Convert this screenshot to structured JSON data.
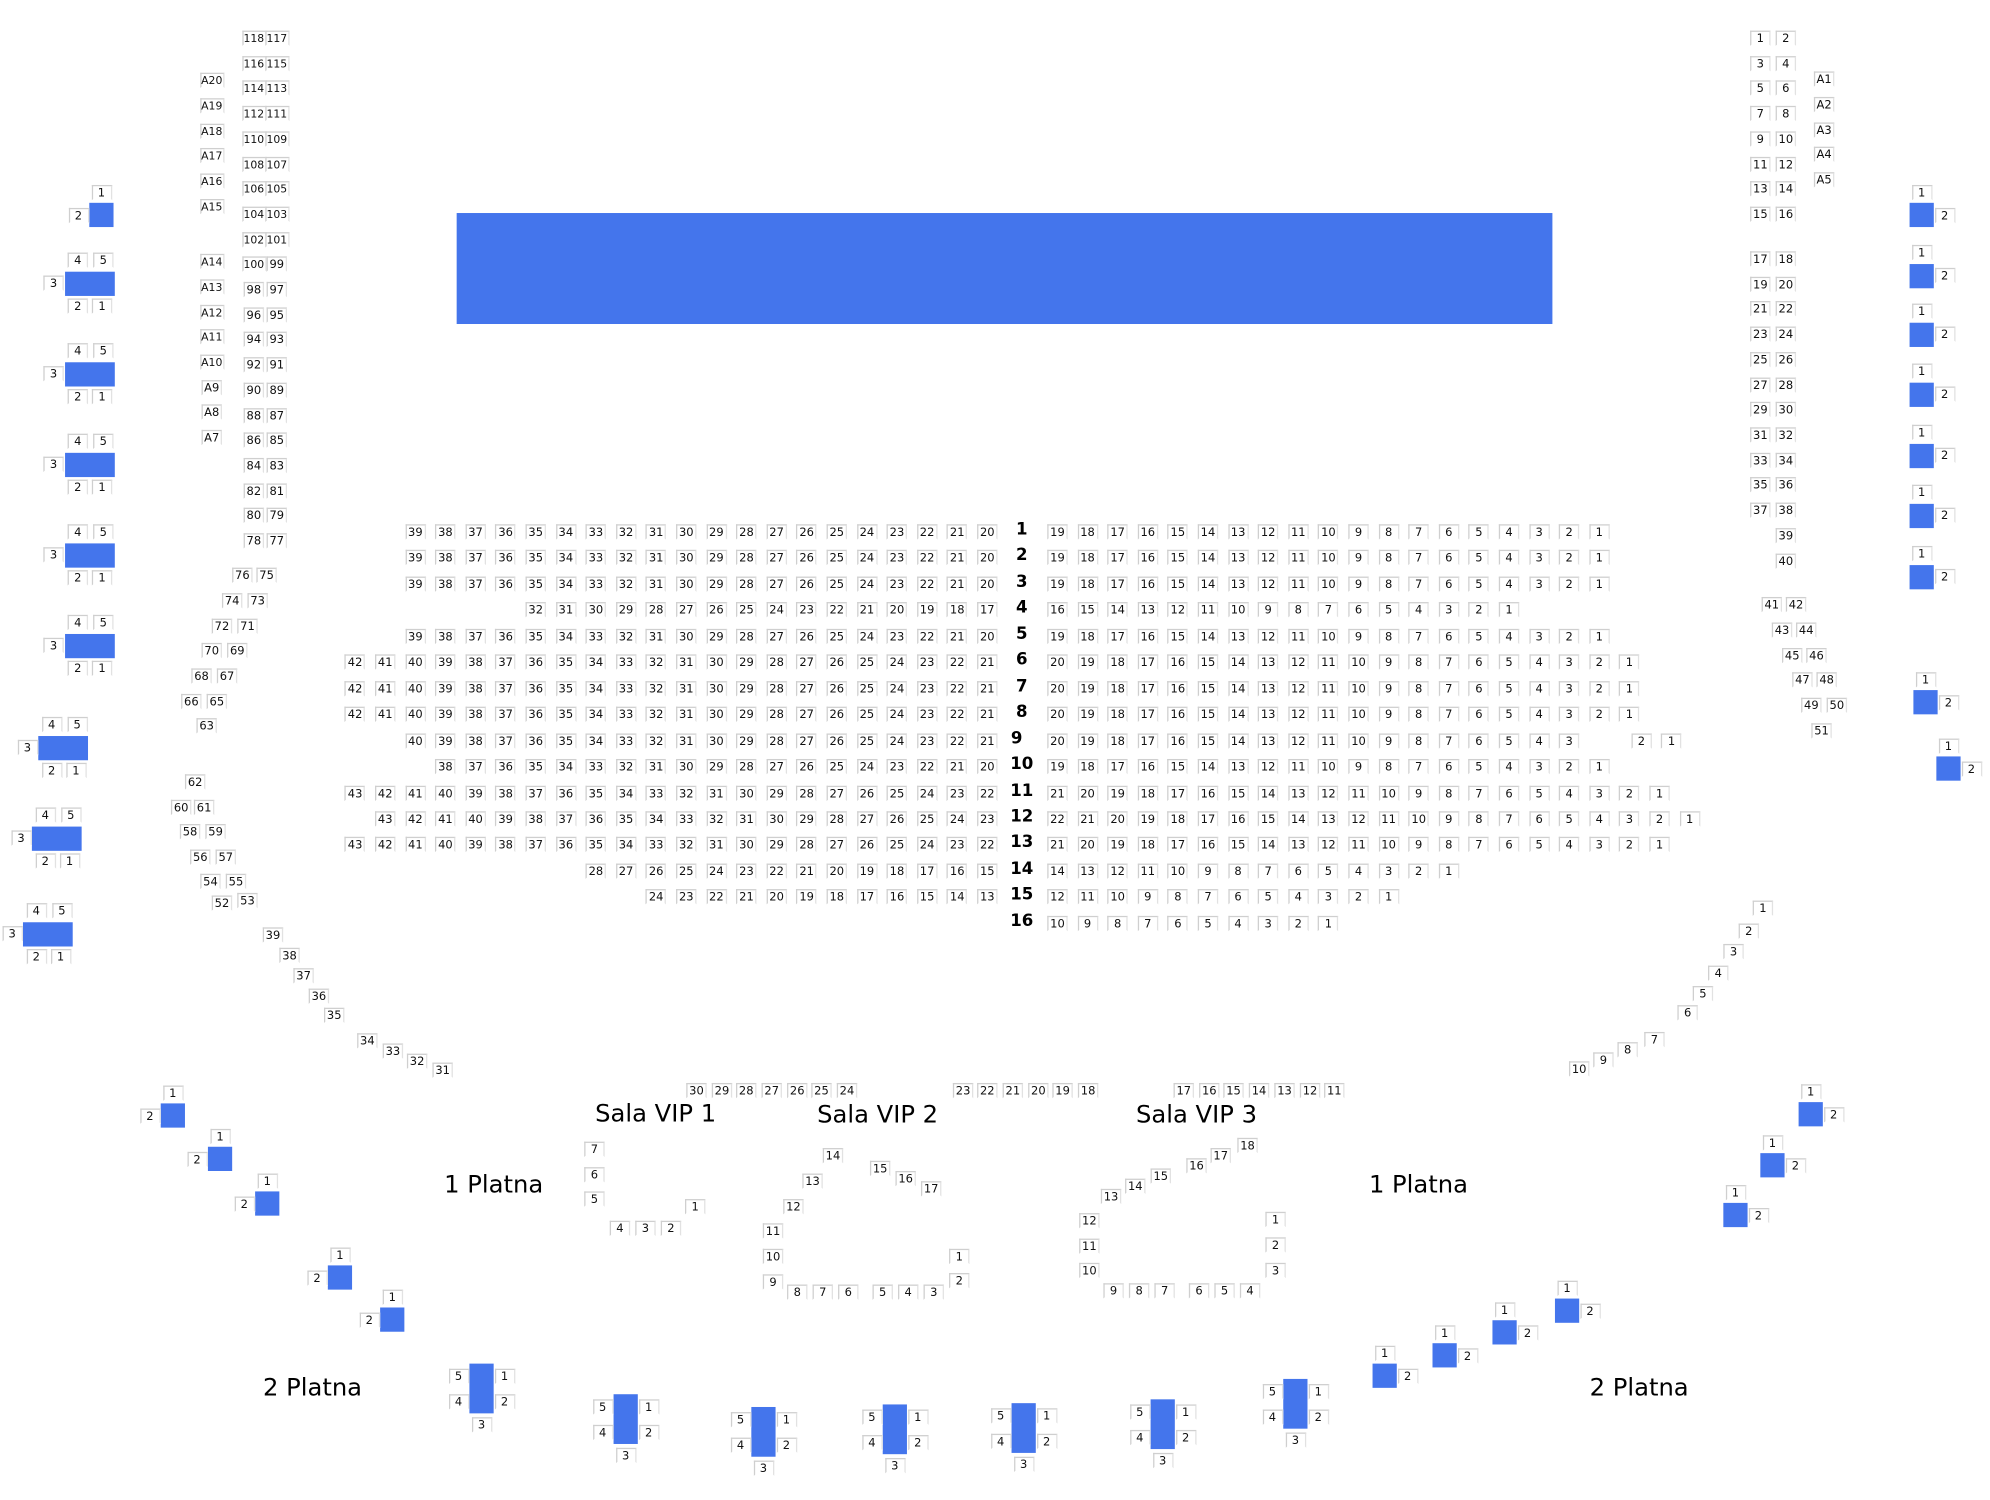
{
  "colors": {
    "table": "#4475ec",
    "stage": "#4475ec",
    "seat_border": "#cfcfcf"
  },
  "labels": {
    "sala_vip_1": "Sala VIP 1",
    "sala_vip_2": "Sala VIP 2",
    "sala_vip_3": "Sala VIP 3",
    "platna_1_left": "1 Platna",
    "platna_1_right": "1 Platna",
    "platna_2_left": "2 Platna",
    "platna_2_right": "2 Platna"
  },
  "main_rows": [
    {
      "row": "1",
      "left": {
        "from": 39,
        "to": 20
      },
      "right": {
        "from": 19,
        "to": 1
      }
    },
    {
      "row": "2",
      "left": {
        "from": 39,
        "to": 20
      },
      "right": {
        "from": 19,
        "to": 1
      }
    },
    {
      "row": "3",
      "left": {
        "from": 39,
        "to": 20
      },
      "right": {
        "from": 19,
        "to": 1
      }
    },
    {
      "row": "4",
      "left": {
        "from": 32,
        "to": 17
      },
      "right": {
        "from": 16,
        "to": 1
      }
    },
    {
      "row": "5",
      "left": {
        "from": 39,
        "to": 20
      },
      "right": {
        "from": 19,
        "to": 1
      }
    },
    {
      "row": "6",
      "left": {
        "from": 42,
        "to": 21
      },
      "right": {
        "from": 20,
        "to": 1
      }
    },
    {
      "row": "7",
      "left": {
        "from": 42,
        "to": 21
      },
      "right": {
        "from": 20,
        "to": 1
      }
    },
    {
      "row": "8",
      "left": {
        "from": 42,
        "to": 21
      },
      "right": {
        "from": 20,
        "to": 1
      }
    },
    {
      "row": "9",
      "left": {
        "from": 40,
        "to": 21
      },
      "right": {
        "from": 20,
        "to": 1
      }
    },
    {
      "row": "10",
      "left": {
        "from": 38,
        "to": 20
      },
      "right": {
        "from": 19,
        "to": 1
      }
    },
    {
      "row": "11",
      "left": {
        "from": 43,
        "to": 22
      },
      "right": {
        "from": 21,
        "to": 1
      }
    },
    {
      "row": "12",
      "left": {
        "from": 43,
        "to": 23
      },
      "right": {
        "from": 22,
        "to": 1
      }
    },
    {
      "row": "13",
      "left": {
        "from": 43,
        "to": 22
      },
      "right": {
        "from": 21,
        "to": 1
      }
    },
    {
      "row": "14",
      "left": {
        "from": 28,
        "to": 15
      },
      "right": {
        "from": 14,
        "to": 1
      }
    },
    {
      "row": "15",
      "left": {
        "from": 24,
        "to": 13
      },
      "right": {
        "from": 12,
        "to": 1
      }
    },
    {
      "row": "16",
      "left": null,
      "right": {
        "from": 10,
        "to": 1
      }
    }
  ],
  "left_column": {
    "from": 118,
    "to": 77
  },
  "left_a_seats": [
    "A20",
    "A19",
    "A18",
    "A17",
    "A16",
    "A15",
    "A14",
    "A13",
    "A12",
    "A11",
    "A10",
    "A9",
    "A8",
    "A7"
  ],
  "left_diagonal": [
    "76",
    "75",
    "74",
    "73",
    "72",
    "71",
    "70",
    "69",
    "68",
    "67",
    "66",
    "65",
    "63",
    "62",
    "60",
    "61",
    "58",
    "59",
    "56",
    "57",
    "54",
    "55",
    "52",
    "53",
    "39",
    "38",
    "37",
    "36",
    "35",
    "34",
    "33",
    "32",
    "31"
  ],
  "right_column": [
    "1",
    "2",
    "3",
    "4",
    "5",
    "6",
    "7",
    "8",
    "9",
    "10",
    "11",
    "12",
    "13",
    "14",
    "15",
    "16",
    "17",
    "18",
    "19",
    "20",
    "21",
    "22",
    "23",
    "24",
    "25",
    "26",
    "27",
    "28",
    "29",
    "30",
    "31",
    "32",
    "33",
    "34",
    "35",
    "36",
    "37",
    "38",
    "39",
    "40"
  ],
  "right_a_seats": [
    "A1",
    "A2",
    "A3",
    "A4",
    "A5"
  ],
  "right_mid": [
    "41",
    "42",
    "43",
    "44",
    "45",
    "46",
    "47",
    "48",
    "49",
    "50",
    "51"
  ],
  "right_lower": [
    "1",
    "2",
    "3",
    "4",
    "5",
    "6",
    "7",
    "8",
    "9",
    "10"
  ],
  "balcony_row": [
    "30",
    "29",
    "28",
    "27",
    "26",
    "25",
    "24",
    "23",
    "22",
    "21",
    "20",
    "19",
    "18",
    "17",
    "16",
    "15",
    "14",
    "13",
    "12",
    "11"
  ],
  "vip1": [
    "7",
    "6",
    "5",
    "1",
    "4",
    "3",
    "2"
  ],
  "vip2": [
    "14",
    "15",
    "16",
    "17",
    "13",
    "12",
    "11",
    "10",
    "9",
    "8",
    "7",
    "6",
    "5",
    "4",
    "3",
    "1",
    "2"
  ],
  "vip3": [
    "18",
    "17",
    "16",
    "15",
    "14",
    "13",
    "12",
    "11",
    "10",
    "9",
    "8",
    "7",
    "6",
    "5",
    "4",
    "1",
    "2",
    "3"
  ],
  "tables": {
    "left_singles": [
      [
        "1",
        "2"
      ],
      [
        "1",
        "2"
      ],
      [
        "1",
        "2"
      ],
      [
        "1",
        "2"
      ],
      [
        "1",
        "2"
      ],
      [
        "1",
        "2"
      ]
    ],
    "left_benches": [
      [
        "4",
        "5",
        "3",
        "2",
        "1"
      ],
      [
        "4",
        "5",
        "3",
        "2",
        "1"
      ],
      [
        "4",
        "5",
        "3",
        "2",
        "1"
      ],
      [
        "4",
        "5",
        "3",
        "2",
        "1"
      ],
      [
        "4",
        "5",
        "3",
        "2",
        "1"
      ],
      [
        "4",
        "5",
        "3",
        "2",
        "1"
      ],
      [
        "4",
        "5",
        "3",
        "2",
        "1"
      ],
      [
        "4",
        "5",
        "3",
        "2",
        "1"
      ]
    ],
    "right_singles": [
      [
        "1",
        "2"
      ],
      [
        "1",
        "2"
      ],
      [
        "1",
        "2"
      ],
      [
        "1",
        "2"
      ],
      [
        "1",
        "2"
      ],
      [
        "1",
        "2"
      ],
      [
        "1",
        "2"
      ],
      [
        "1",
        "2"
      ],
      [
        "1",
        "2"
      ],
      [
        "1",
        "2"
      ],
      [
        "1",
        "2"
      ],
      [
        "1",
        "2"
      ],
      [
        "1",
        "2"
      ],
      [
        "1",
        "2"
      ],
      [
        "1",
        "2"
      ],
      [
        "1",
        "2"
      ]
    ],
    "vertical": [
      [
        "5",
        "4",
        "1",
        "2",
        "3"
      ],
      [
        "5",
        "4",
        "1",
        "2",
        "3"
      ],
      [
        "5",
        "4",
        "1",
        "2",
        "3"
      ],
      [
        "5",
        "4",
        "1",
        "2",
        "3"
      ],
      [
        "5",
        "4",
        "1",
        "2",
        "3"
      ],
      [
        "5",
        "4",
        "1",
        "2",
        "3"
      ],
      [
        "5",
        "4",
        "1",
        "2",
        "3"
      ]
    ]
  }
}
